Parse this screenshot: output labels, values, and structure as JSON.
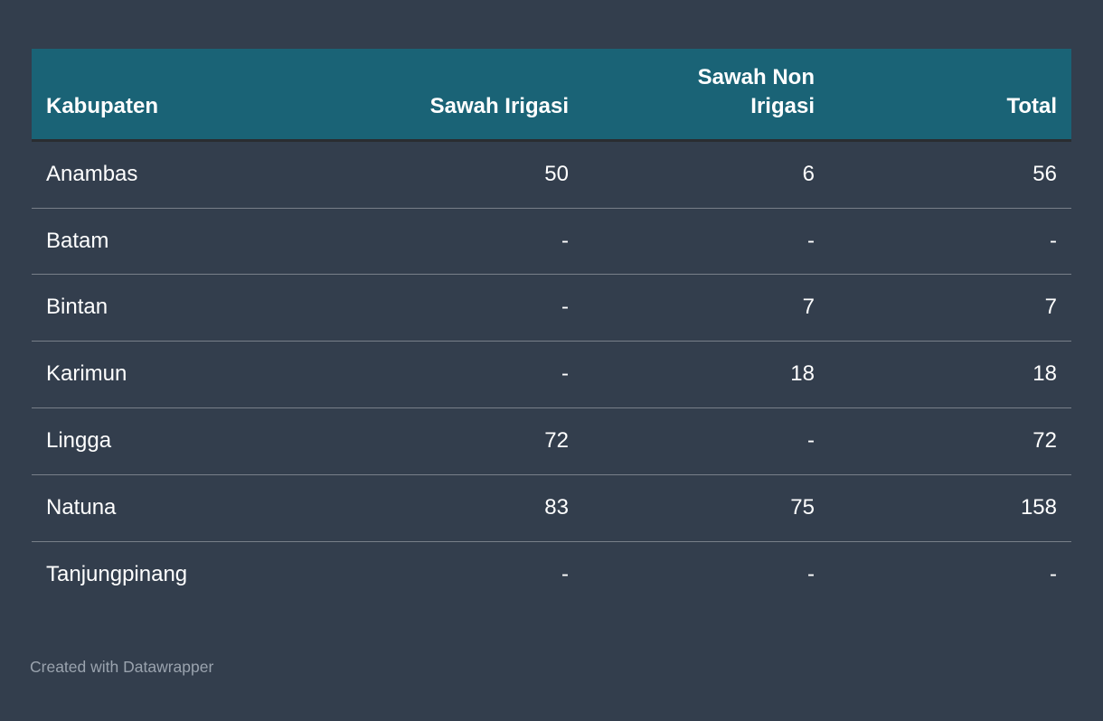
{
  "table": {
    "columns": [
      {
        "label": "Kabupaten",
        "align": "left"
      },
      {
        "label": "Sawah Irigasi",
        "align": "right"
      },
      {
        "label": "Sawah Non Irigasi",
        "align": "right"
      },
      {
        "label": "Total",
        "align": "right"
      }
    ],
    "rows": [
      [
        "Anambas",
        "50",
        "6",
        "56"
      ],
      [
        "Batam",
        "-",
        "-",
        "-"
      ],
      [
        "Bintan",
        "-",
        "7",
        "7"
      ],
      [
        "Karimun",
        "-",
        "18",
        "18"
      ],
      [
        "Lingga",
        "72",
        "-",
        "72"
      ],
      [
        "Natuna",
        "83",
        "75",
        "158"
      ],
      [
        "Tanjungpinang",
        "-",
        "-",
        "-"
      ]
    ]
  },
  "chart_data": {
    "type": "table",
    "title": "",
    "columns": [
      "Kabupaten",
      "Sawah Irigasi",
      "Sawah Non Irigasi",
      "Total"
    ],
    "rows": [
      {
        "kabupaten": "Anambas",
        "sawah_irigasi": 50,
        "sawah_non_irigasi": 6,
        "total": 56
      },
      {
        "kabupaten": "Batam",
        "sawah_irigasi": null,
        "sawah_non_irigasi": null,
        "total": null
      },
      {
        "kabupaten": "Bintan",
        "sawah_irigasi": null,
        "sawah_non_irigasi": 7,
        "total": 7
      },
      {
        "kabupaten": "Karimun",
        "sawah_irigasi": null,
        "sawah_non_irigasi": 18,
        "total": 18
      },
      {
        "kabupaten": "Lingga",
        "sawah_irigasi": 72,
        "sawah_non_irigasi": null,
        "total": 72
      },
      {
        "kabupaten": "Natuna",
        "sawah_irigasi": 83,
        "sawah_non_irigasi": 75,
        "total": 158
      },
      {
        "kabupaten": "Tanjungpinang",
        "sawah_irigasi": null,
        "sawah_non_irigasi": null,
        "total": null
      }
    ],
    "missing_value_display": "-"
  },
  "footer": {
    "credit": "Created with Datawrapper"
  },
  "colors": {
    "page_background": "#333E4D",
    "header_background": "#1A6376",
    "header_text": "#FFFFFF",
    "body_text": "#FFFFFF",
    "row_divider": "#8A93A0",
    "header_bottom_border": "#2A2D31",
    "credit_text": "#9AA3AE"
  }
}
